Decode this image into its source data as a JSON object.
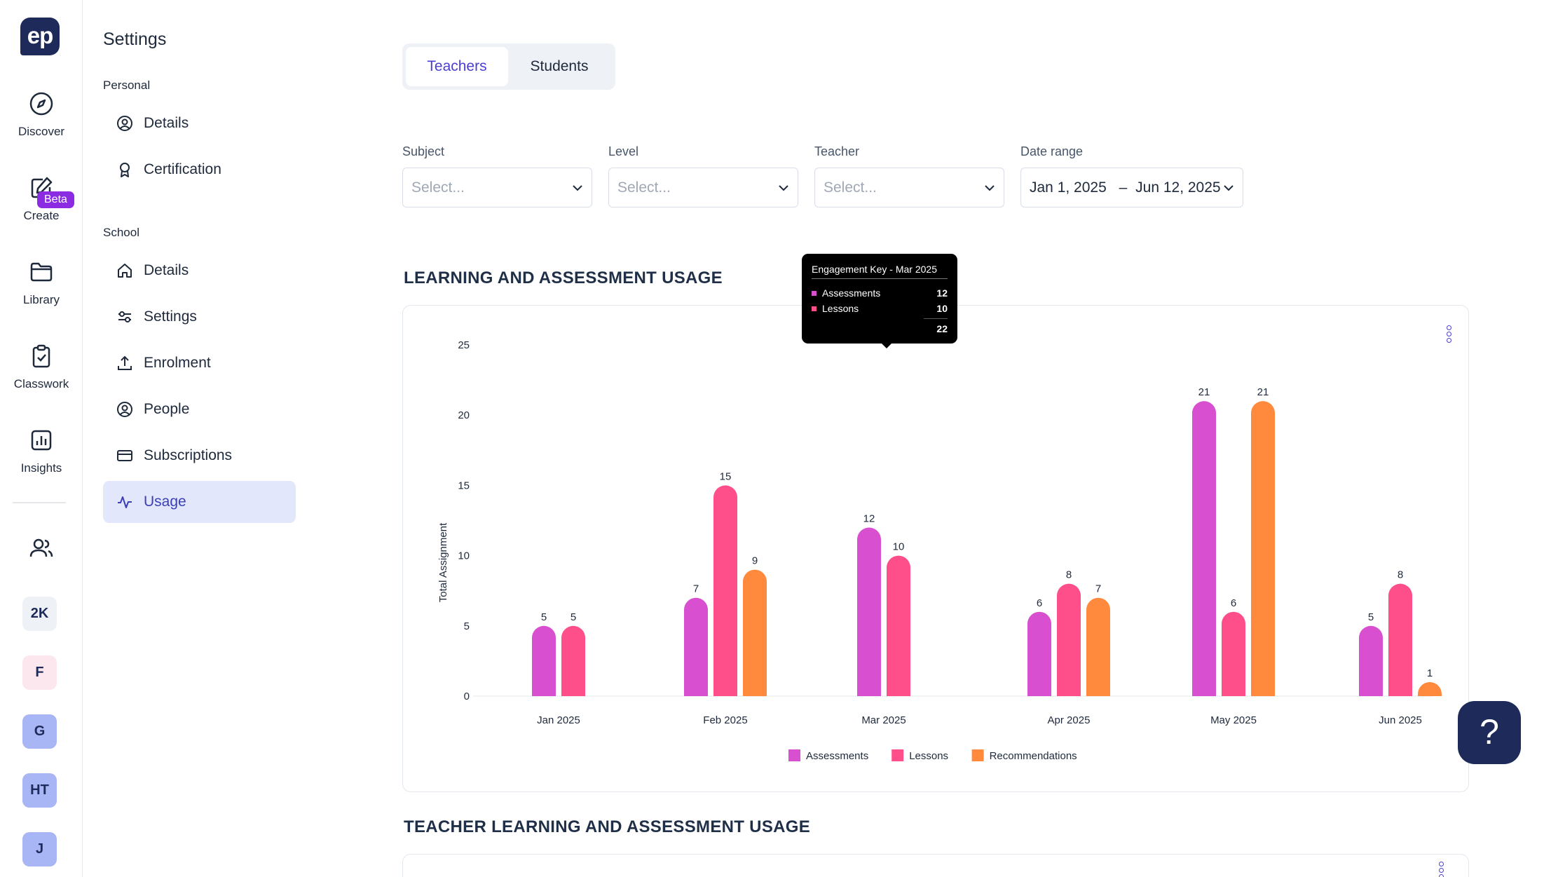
{
  "app": {
    "logo_text": "ep"
  },
  "rail": {
    "items": [
      {
        "label": "Discover",
        "icon": "compass-icon"
      },
      {
        "label": "Create",
        "icon": "edit-icon",
        "badge": "Beta"
      },
      {
        "label": "Library",
        "icon": "folder-icon"
      },
      {
        "label": "Classwork",
        "icon": "clipboard-check-icon"
      },
      {
        "label": "Insights",
        "icon": "bar-chart-icon"
      }
    ],
    "users_icon": "users-icon",
    "avatars": [
      {
        "initials": "2K",
        "color": "#eef1f6"
      },
      {
        "initials": "F",
        "color": "#fde7ef"
      },
      {
        "initials": "G",
        "color": "#a9b6f5"
      },
      {
        "initials": "HT",
        "color": "#a9b6f5"
      },
      {
        "initials": "J",
        "color": "#a9b6f5"
      }
    ]
  },
  "settings": {
    "title": "Settings",
    "personal_label": "Personal",
    "personal_items": [
      {
        "label": "Details",
        "icon": "user-circle-icon"
      },
      {
        "label": "Certification",
        "icon": "award-icon"
      }
    ],
    "school_label": "School",
    "school_items": [
      {
        "label": "Details",
        "icon": "home-icon"
      },
      {
        "label": "Settings",
        "icon": "sliders-icon"
      },
      {
        "label": "Enrolment",
        "icon": "upload-icon"
      },
      {
        "label": "People",
        "icon": "user-circle-icon"
      },
      {
        "label": "Subscriptions",
        "icon": "credit-card-icon"
      },
      {
        "label": "Usage",
        "icon": "activity-icon",
        "active": true
      }
    ]
  },
  "tabs": [
    {
      "label": "Teachers",
      "active": true
    },
    {
      "label": "Students",
      "active": false
    }
  ],
  "filters": {
    "subject": {
      "label": "Subject",
      "value": "Select..."
    },
    "level": {
      "label": "Level",
      "value": "Select..."
    },
    "teacher": {
      "label": "Teacher",
      "value": "Select..."
    },
    "date_range": {
      "label": "Date range",
      "start": "Jan 1, 2025",
      "sep": "–",
      "end": "Jun 12, 2025"
    }
  },
  "sections": {
    "usage_title": "LEARNING AND ASSESSMENT USAGE",
    "teacher_usage_title": "TEACHER LEARNING AND ASSESSMENT USAGE"
  },
  "tooltip": {
    "title": "Engagement Key - Mar 2025",
    "rows": [
      {
        "label": "Assessments",
        "value": "12",
        "color": "#d84fd0"
      },
      {
        "label": "Lessons",
        "value": "10",
        "color": "#ff4f8b"
      }
    ],
    "total": "22"
  },
  "help_icon": "?",
  "chart_data": {
    "type": "bar",
    "categories": [
      "Jan 2025",
      "Feb 2025",
      "Mar 2025",
      "Apr 2025",
      "May 2025",
      "Jun 2025"
    ],
    "series": [
      {
        "name": "Assessments",
        "color": "#d84fd0",
        "values": [
          5,
          7,
          12,
          6,
          21,
          5
        ]
      },
      {
        "name": "Lessons",
        "color": "#ff4f8b",
        "values": [
          5,
          15,
          10,
          8,
          6,
          8
        ]
      },
      {
        "name": "Recommendations",
        "color": "#ff8a3d",
        "values": [
          0,
          9,
          0,
          7,
          21,
          1
        ]
      }
    ],
    "ylabel": "Total Assignment",
    "ylim": [
      0,
      25
    ],
    "yticks": [
      0,
      5,
      10,
      15,
      20,
      25
    ],
    "legend": "bottom"
  }
}
